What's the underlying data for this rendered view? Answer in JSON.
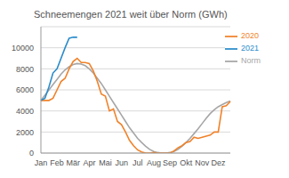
{
  "chart_data": {
    "type": "line",
    "title": "Schneemengen 2021 weit über Norm (GWh)",
    "categories": [
      "Jan",
      null,
      null,
      null,
      "Feb",
      null,
      null,
      null,
      "Mär",
      null,
      null,
      null,
      "Apr",
      null,
      null,
      null,
      "Mai",
      null,
      null,
      null,
      "Jun",
      null,
      null,
      null,
      "Jul",
      null,
      null,
      null,
      "Aug",
      null,
      null,
      null,
      "Sep",
      null,
      null,
      null,
      "Okt",
      null,
      null,
      null,
      "Nov",
      null,
      null,
      null,
      "Dez",
      null,
      null,
      null
    ],
    "series": [
      {
        "name": "Norm",
        "color": "#a6a6a6",
        "values": [
          5000,
          5500,
          6000,
          6500,
          7000,
          7500,
          7900,
          8200,
          8400,
          8500,
          8450,
          8300,
          8000,
          7600,
          7100,
          6600,
          6000,
          5400,
          4800,
          4200,
          3600,
          3000,
          2400,
          1900,
          1400,
          1000,
          650,
          350,
          150,
          50,
          0,
          0,
          50,
          150,
          350,
          650,
          1000,
          1400,
          1850,
          2300,
          2800,
          3300,
          3750,
          4100,
          4400,
          4600,
          4800,
          4950
        ]
      },
      {
        "name": "2020",
        "color": "#f0822a",
        "values": [
          5000,
          5000,
          5000,
          5200,
          6000,
          6800,
          7100,
          8000,
          8700,
          9000,
          8600,
          8600,
          8500,
          7800,
          6800,
          5600,
          5400,
          4000,
          4200,
          3000,
          2700,
          2000,
          1200,
          700,
          300,
          100,
          0,
          0,
          50,
          0,
          0,
          0,
          0,
          200,
          500,
          700,
          1000,
          1100,
          1500,
          1400,
          1500,
          1600,
          1700,
          2000,
          2000,
          4400,
          4500,
          4900
        ]
      },
      {
        "name": "2021",
        "color": "#2b8ccb",
        "values": [
          5000,
          5200,
          6300,
          7600,
          8000,
          9000,
          10000,
          10900,
          11000,
          11000,
          null,
          null,
          null,
          null,
          null,
          null,
          null,
          null,
          null,
          null,
          null,
          null,
          null,
          null,
          null,
          null,
          null,
          null,
          null,
          null,
          null,
          null,
          null,
          null,
          null,
          null,
          null,
          null,
          null,
          null,
          null,
          null,
          null,
          null,
          null,
          null,
          null,
          null
        ]
      }
    ],
    "ylim": [
      0,
      12000
    ],
    "yticks": [
      0,
      2000,
      4000,
      6000,
      8000,
      10000
    ],
    "grid": true,
    "legend": "upper right"
  }
}
